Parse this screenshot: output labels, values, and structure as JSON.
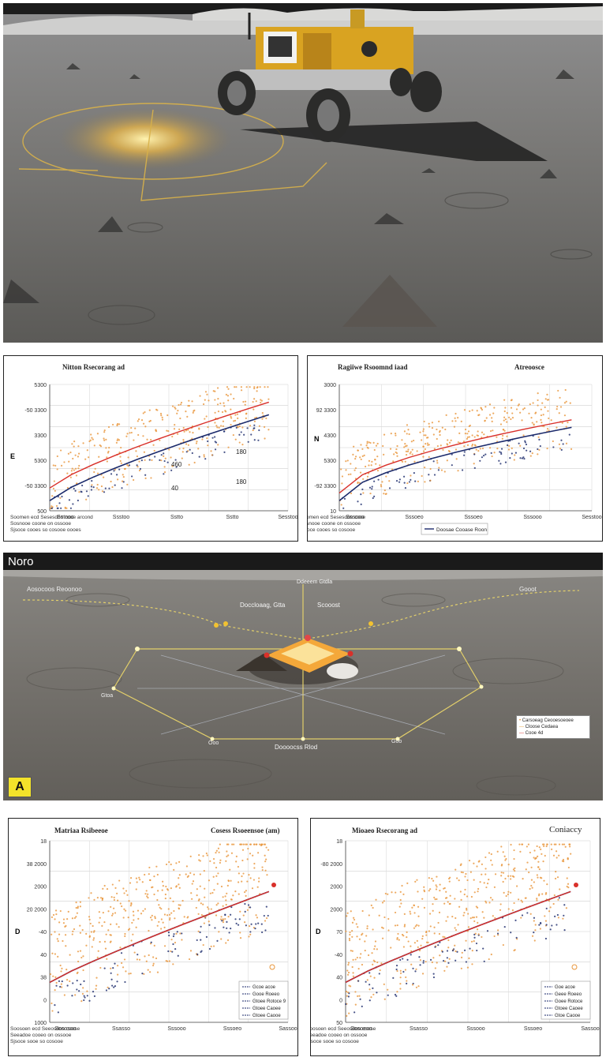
{
  "top_chart_left": {
    "title": "Nitton Rsecorang ad",
    "y_ticks": [
      "5300",
      "-50 3300",
      "3300",
      "5300",
      "-50 3300",
      "500"
    ],
    "y_side_label": "E",
    "inline_labels": [
      "460",
      "40",
      "180",
      "180"
    ],
    "x_ticks": [
      "Sstnoo",
      "Ssstoo",
      "Sstto",
      "Sstto",
      "Sesstoo"
    ],
    "footnote": [
      "Soomen ecd Sesesdon cooe arcond",
      "Sosnooe coone on ossooe",
      "Sjsoce cooes so cosooe oooes"
    ],
    "colors": {
      "orange": "#e8953a",
      "navy": "#1b2a6b",
      "red": "#d9302a"
    }
  },
  "top_chart_right": {
    "title": "Ragiiwe Rsoomnd iaad",
    "title_right": "Atreoosce",
    "y_ticks": [
      "3000",
      "92 3300",
      "4300",
      "5300",
      "-92 3300",
      "10"
    ],
    "y_side_label": "N",
    "x_ticks": [
      "Sssooo",
      "Sssoeo",
      "Sssoeo",
      "Sssooo",
      "Sesstoo"
    ],
    "footnote": [
      "Soomen ecd Sesesdon cooe",
      "Sosnooe coone on ossooe",
      "Sjsoce cooes so cosooe"
    ],
    "legend_label": "Doosae Cooase Roon"
  },
  "middle_scene": {
    "corner_label": "Noro",
    "badge": "A",
    "annotations": [
      "Aosocoos Reoonoo",
      "Doccloaag, Gtta",
      "Scooost",
      "Gooot",
      "Doooocss Rlod",
      "Ddeeem Gtdla",
      "Gtoa",
      "Ooo",
      "Goo"
    ],
    "legend": [
      "Carsoeag Ceooesoeoee",
      "Cloose Cedaea",
      "Cooe 4d"
    ]
  },
  "bottom_chart_left": {
    "title": "Matriaa Rsibeeoe",
    "title_right": "Cosess Rsoeensoe (am)",
    "y_ticks": [
      "18",
      "38 2000",
      "2000",
      "20 2000",
      "-40",
      "40",
      "38",
      "0",
      "1000"
    ],
    "y_side_label": "D",
    "x_ticks": [
      "Sososoo",
      "Ssasso",
      "Sssooo",
      "Sssoeo",
      "Sassoo"
    ],
    "footnote": [
      "Soosoen ecd Seeosdon coose",
      "Seeadoe cooeo on ossooe",
      "Sjsoce sooe so cosooe"
    ],
    "legend": [
      "Gcoe acoe",
      "Gooe Roeeo",
      "Gtoee Rotoce 9",
      "Gtoee Caoee",
      "Gtoee Caooe"
    ]
  },
  "bottom_chart_right": {
    "title": "Mioaeo Rsecorang ad",
    "title_right": "Coniaccy",
    "y_ticks": [
      "18",
      "-80 2000",
      "2000",
      "2000",
      "70",
      "-40",
      "40",
      "0",
      "50"
    ],
    "y_side_label": "D",
    "x_ticks": [
      "Sosoeoo",
      "Ssasso",
      "Sssooo",
      "Sssoeo",
      "Sassoo"
    ],
    "footnote": [
      "Soosoen ecd Seeosdon coose",
      "Seeadoe cooeo on ossooe",
      "Sjsoce sooe so cosooe"
    ],
    "legend": [
      "Goe acoe",
      "Geee Roeeo",
      "Goee Rotoce",
      "Gtoee Caoee",
      "Gtoe Caooe"
    ]
  }
}
